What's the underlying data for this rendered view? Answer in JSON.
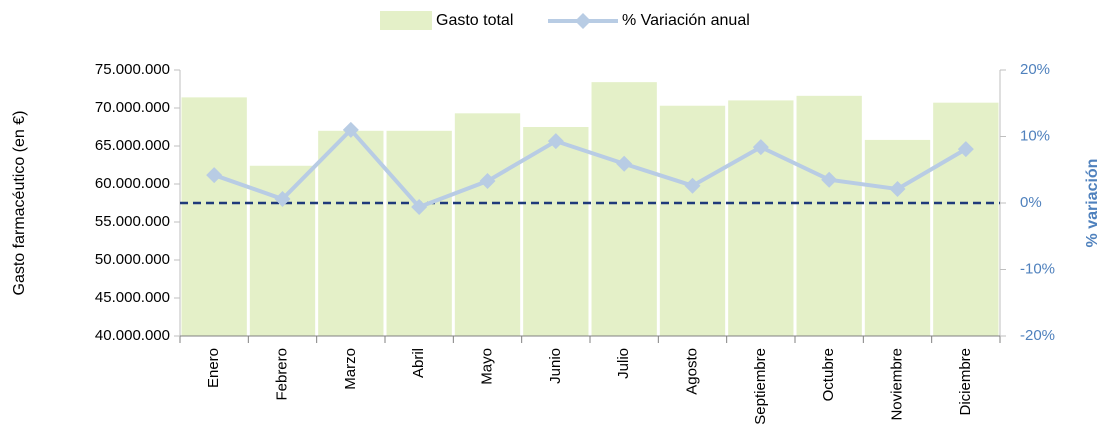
{
  "chart_data": {
    "type": "bar-line",
    "categories": [
      "Enero",
      "Febrero",
      "Marzo",
      "Abril",
      "Mayo",
      "Junio",
      "Julio",
      "Agosto",
      "Septiembre",
      "Octubre",
      "Noviembre",
      "Diciembre"
    ],
    "series": [
      {
        "name": "Gasto total",
        "type": "bar",
        "color": "#e4f0c8",
        "values": [
          71400000,
          62400000,
          67000000,
          67000000,
          69300000,
          67500000,
          73400000,
          70300000,
          71000000,
          71600000,
          65800000,
          70700000
        ]
      },
      {
        "name": "% Variación anual",
        "type": "line",
        "axis": "y2",
        "color": "#b8cce4",
        "values": [
          4.2,
          0.6,
          11.0,
          -0.6,
          3.3,
          9.3,
          5.9,
          2.6,
          8.4,
          3.5,
          2.1,
          8.1
        ]
      }
    ],
    "y_label": "Gasto farmacéutico (en €)",
    "y2_label": "% variación",
    "ylim": [
      40000000,
      75000000
    ],
    "yticks": [
      {
        "value": 40000000,
        "label": "40.000.000"
      },
      {
        "value": 45000000,
        "label": "45.000.000"
      },
      {
        "value": 50000000,
        "label": "50.000.000"
      },
      {
        "value": 55000000,
        "label": "55.000.000"
      },
      {
        "value": 60000000,
        "label": "60.000.000"
      },
      {
        "value": 65000000,
        "label": "65.000.000"
      },
      {
        "value": 70000000,
        "label": "70.000.000"
      },
      {
        "value": 75000000,
        "label": "75.000.000"
      }
    ],
    "y2lim": [
      -20,
      20
    ],
    "y2ticks": [
      {
        "value": -20,
        "label": "-20%"
      },
      {
        "value": -10,
        "label": "-10%"
      },
      {
        "value": 0,
        "label": "0%"
      },
      {
        "value": 10,
        "label": "10%"
      },
      {
        "value": 20,
        "label": "20%"
      }
    ],
    "zero_line_color": "#1f3a7a",
    "legend": "top"
  }
}
